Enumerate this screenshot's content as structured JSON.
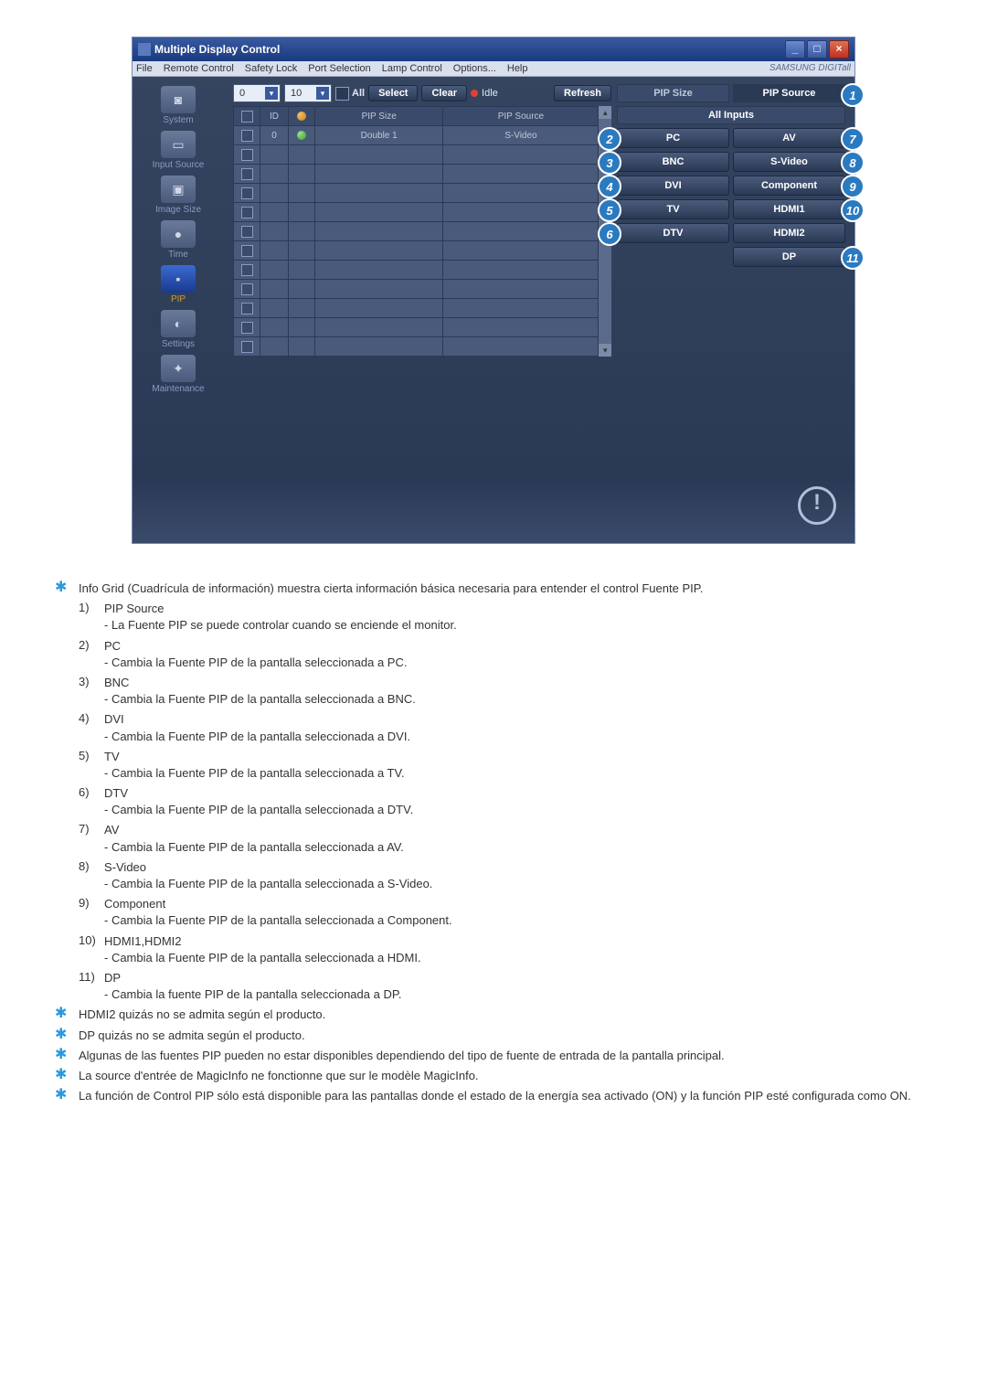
{
  "window": {
    "title": "Multiple Display Control",
    "minimize": "_",
    "maximize": "□",
    "close": "×"
  },
  "menu": {
    "items": [
      "File",
      "Remote Control",
      "Safety Lock",
      "Port Selection",
      "Lamp Control",
      "Options...",
      "Help"
    ],
    "brand": "SAMSUNG DIGITall"
  },
  "sidebar": {
    "items": [
      {
        "label": "System",
        "glyph": "◙"
      },
      {
        "label": "Input Source",
        "glyph": "▭"
      },
      {
        "label": "Image Size",
        "glyph": "▣"
      },
      {
        "label": "Time",
        "glyph": "●"
      },
      {
        "label": "PIP",
        "glyph": "▪",
        "active": true
      },
      {
        "label": "Settings",
        "glyph": "◐"
      },
      {
        "label": "Maintenance",
        "glyph": "✦"
      }
    ]
  },
  "toolbar": {
    "dd1": "0",
    "dd2": "10",
    "all_label": "All",
    "select_btn": "Select",
    "clear_btn": "Clear",
    "idle_label": "Idle",
    "refresh_btn": "Refresh"
  },
  "grid": {
    "headers": [
      "",
      "ID",
      "",
      "PIP Size",
      "PIP Source"
    ],
    "rows": [
      {
        "chk": true,
        "id": "0",
        "status": "green",
        "size": "Double 1",
        "source": "S-Video"
      },
      {
        "chk": false
      },
      {
        "chk": false
      },
      {
        "chk": false
      },
      {
        "chk": false
      },
      {
        "chk": false
      },
      {
        "chk": false
      },
      {
        "chk": false
      },
      {
        "chk": false
      },
      {
        "chk": false
      },
      {
        "chk": false
      },
      {
        "chk": false
      }
    ],
    "header_status_glyph": "◉"
  },
  "right": {
    "tab_size": "PIP Size",
    "tab_source": "PIP Source",
    "all_inputs": "All Inputs",
    "left_col": [
      {
        "label": "PC",
        "callout": "2"
      },
      {
        "label": "BNC",
        "callout": "3"
      },
      {
        "label": "DVI",
        "callout": "4"
      },
      {
        "label": "TV",
        "callout": "5"
      },
      {
        "label": "DTV",
        "callout": "6"
      }
    ],
    "right_col": [
      {
        "label": "AV",
        "callout": "7"
      },
      {
        "label": "S-Video",
        "callout": "8"
      },
      {
        "label": "Component",
        "callout": "9"
      },
      {
        "label": "HDMI1",
        "callout": "10"
      },
      {
        "label": "HDMI2",
        "callout": ""
      },
      {
        "label": "DP",
        "callout": "11"
      }
    ],
    "callout_tab": "1",
    "callout_hdmi2_extra": "10"
  },
  "doc": {
    "intro": "Info Grid (Cuadrícula de información) muestra cierta información básica necesaria para entender el control Fuente PIP.",
    "items": [
      {
        "n": "1)",
        "t": "PIP Source",
        "d": "- La Fuente PIP se puede controlar cuando se enciende el monitor."
      },
      {
        "n": "2)",
        "t": "PC",
        "d": "- Cambia la Fuente PIP de la pantalla seleccionada a PC."
      },
      {
        "n": "3)",
        "t": "BNC",
        "d": "- Cambia la Fuente PIP de la pantalla seleccionada a BNC."
      },
      {
        "n": "4)",
        "t": "DVI",
        "d": "- Cambia la Fuente PIP de la pantalla seleccionada a DVI."
      },
      {
        "n": "5)",
        "t": "TV",
        "d": "- Cambia la Fuente PIP de la pantalla seleccionada a TV."
      },
      {
        "n": "6)",
        "t": "DTV",
        "d": "- Cambia la Fuente PIP de la pantalla seleccionada a DTV."
      },
      {
        "n": "7)",
        "t": "AV",
        "d": "- Cambia la Fuente PIP de la pantalla seleccionada a AV."
      },
      {
        "n": "8)",
        "t": "S-Video",
        "d": "- Cambia la Fuente PIP de la pantalla seleccionada a S-Video."
      },
      {
        "n": "9)",
        "t": "Component",
        "d": "- Cambia la Fuente PIP de la pantalla seleccionada a Component."
      },
      {
        "n": "10)",
        "t": "HDMI1,HDMI2",
        "d": "- Cambia la Fuente PIP de la pantalla seleccionada a HDMI."
      },
      {
        "n": "11)",
        "t": "DP",
        "d": "- Cambia la fuente PIP de la pantalla seleccionada a DP."
      }
    ],
    "notes": [
      "HDMI2 quizás no se admita según el producto.",
      "DP quizás no se admita según el producto.",
      "Algunas de las fuentes PIP pueden no estar disponibles dependiendo del tipo de fuente de entrada de la pantalla principal.",
      "La source d'entrée de MagicInfo ne fonctionne que sur le modèle MagicInfo.",
      "La función de Control PIP sólo está disponible para las pantallas donde el estado de la energía sea activado (ON) y la función PIP esté configurada como ON."
    ]
  },
  "colors": {
    "accent": "#2a7ac0",
    "star": "#2a9ae0"
  }
}
